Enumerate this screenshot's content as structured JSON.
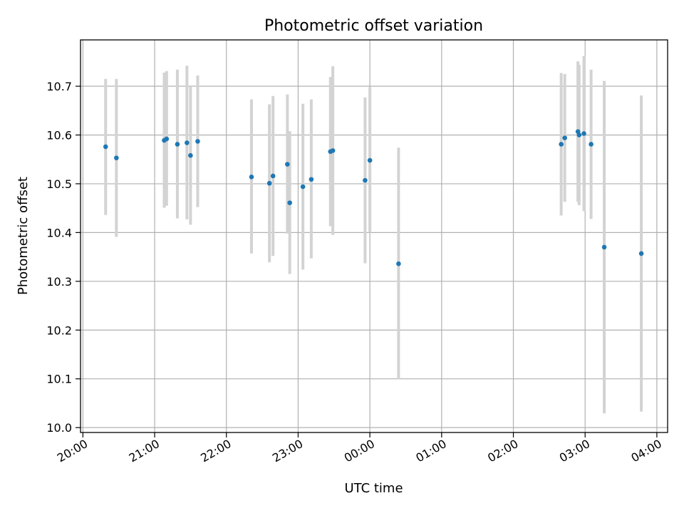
{
  "chart_data": {
    "type": "scatter",
    "title": "Photometric offset variation",
    "xlabel": "UTC time",
    "ylabel": "Photometric offset",
    "x_axis": {
      "kind": "time",
      "range": [
        "2023-01-01T19:58",
        "2023-01-02T04:09"
      ],
      "ticks": [
        {
          "t": "2023-01-01T20:00",
          "label": "20:00"
        },
        {
          "t": "2023-01-01T21:00",
          "label": "21:00"
        },
        {
          "t": "2023-01-01T22:00",
          "label": "22:00"
        },
        {
          "t": "2023-01-01T23:00",
          "label": "23:00"
        },
        {
          "t": "2023-01-02T00:00",
          "label": "00:00"
        },
        {
          "t": "2023-01-02T01:00",
          "label": "01:00"
        },
        {
          "t": "2023-01-02T02:00",
          "label": "02:00"
        },
        {
          "t": "2023-01-02T03:00",
          "label": "03:00"
        },
        {
          "t": "2023-01-02T04:00",
          "label": "04:00"
        }
      ]
    },
    "y_axis": {
      "range": [
        9.99,
        10.795
      ],
      "ticks": [
        {
          "v": 10.0,
          "label": "10.0"
        },
        {
          "v": 10.1,
          "label": "10.1"
        },
        {
          "v": 10.2,
          "label": "10.2"
        },
        {
          "v": 10.3,
          "label": "10.3"
        },
        {
          "v": 10.4,
          "label": "10.4"
        },
        {
          "v": 10.5,
          "label": "10.5"
        },
        {
          "v": 10.6,
          "label": "10.6"
        },
        {
          "v": 10.7,
          "label": "10.7"
        }
      ]
    },
    "grid": true,
    "marker_color": "#1f77b4",
    "errorbar_color": "#d3d3d3",
    "points": [
      {
        "t": "2023-01-01T20:19",
        "y": 10.576,
        "lo": 10.436,
        "hi": 10.715
      },
      {
        "t": "2023-01-01T20:28",
        "y": 10.553,
        "lo": 10.391,
        "hi": 10.715
      },
      {
        "t": "2023-01-01T21:08",
        "y": 10.589,
        "lo": 10.451,
        "hi": 10.728
      },
      {
        "t": "2023-01-01T21:10",
        "y": 10.592,
        "lo": 10.455,
        "hi": 10.731
      },
      {
        "t": "2023-01-01T21:19",
        "y": 10.581,
        "lo": 10.429,
        "hi": 10.734
      },
      {
        "t": "2023-01-01T21:27",
        "y": 10.584,
        "lo": 10.427,
        "hi": 10.742
      },
      {
        "t": "2023-01-01T21:30",
        "y": 10.558,
        "lo": 10.416,
        "hi": 10.7
      },
      {
        "t": "2023-01-01T21:36",
        "y": 10.587,
        "lo": 10.452,
        "hi": 10.722
      },
      {
        "t": "2023-01-01T22:21",
        "y": 10.514,
        "lo": 10.357,
        "hi": 10.673
      },
      {
        "t": "2023-01-01T22:36",
        "y": 10.501,
        "lo": 10.339,
        "hi": 10.663
      },
      {
        "t": "2023-01-01T22:39",
        "y": 10.516,
        "lo": 10.352,
        "hi": 10.68
      },
      {
        "t": "2023-01-01T22:51",
        "y": 10.54,
        "lo": 10.398,
        "hi": 10.683
      },
      {
        "t": "2023-01-01T22:53",
        "y": 10.461,
        "lo": 10.315,
        "hi": 10.608
      },
      {
        "t": "2023-01-01T23:04",
        "y": 10.494,
        "lo": 10.324,
        "hi": 10.664
      },
      {
        "t": "2023-01-01T23:11",
        "y": 10.509,
        "lo": 10.347,
        "hi": 10.673
      },
      {
        "t": "2023-01-01T23:27",
        "y": 10.566,
        "lo": 10.413,
        "hi": 10.719
      },
      {
        "t": "2023-01-01T23:29",
        "y": 10.568,
        "lo": 10.395,
        "hi": 10.741
      },
      {
        "t": "2023-01-01T23:56",
        "y": 10.507,
        "lo": 10.337,
        "hi": 10.677
      },
      {
        "t": "2023-01-02T00:00",
        "y": 10.548,
        "lo": 10.4,
        "hi": 10.698
      },
      {
        "t": "2023-01-02T00:24",
        "y": 10.336,
        "lo": 10.1,
        "hi": 10.574
      },
      {
        "t": "2023-01-02T02:40",
        "y": 10.581,
        "lo": 10.435,
        "hi": 10.727
      },
      {
        "t": "2023-01-02T02:43",
        "y": 10.594,
        "lo": 10.463,
        "hi": 10.725
      },
      {
        "t": "2023-01-02T02:54",
        "y": 10.607,
        "lo": 10.463,
        "hi": 10.751
      },
      {
        "t": "2023-01-02T02:55",
        "y": 10.6,
        "lo": 10.456,
        "hi": 10.744
      },
      {
        "t": "2023-01-02T02:59",
        "y": 10.603,
        "lo": 10.444,
        "hi": 10.762
      },
      {
        "t": "2023-01-02T03:05",
        "y": 10.581,
        "lo": 10.428,
        "hi": 10.734
      },
      {
        "t": "2023-01-02T03:16",
        "y": 10.37,
        "lo": 10.029,
        "hi": 10.711
      },
      {
        "t": "2023-01-02T03:47",
        "y": 10.357,
        "lo": 10.033,
        "hi": 10.681
      }
    ]
  }
}
